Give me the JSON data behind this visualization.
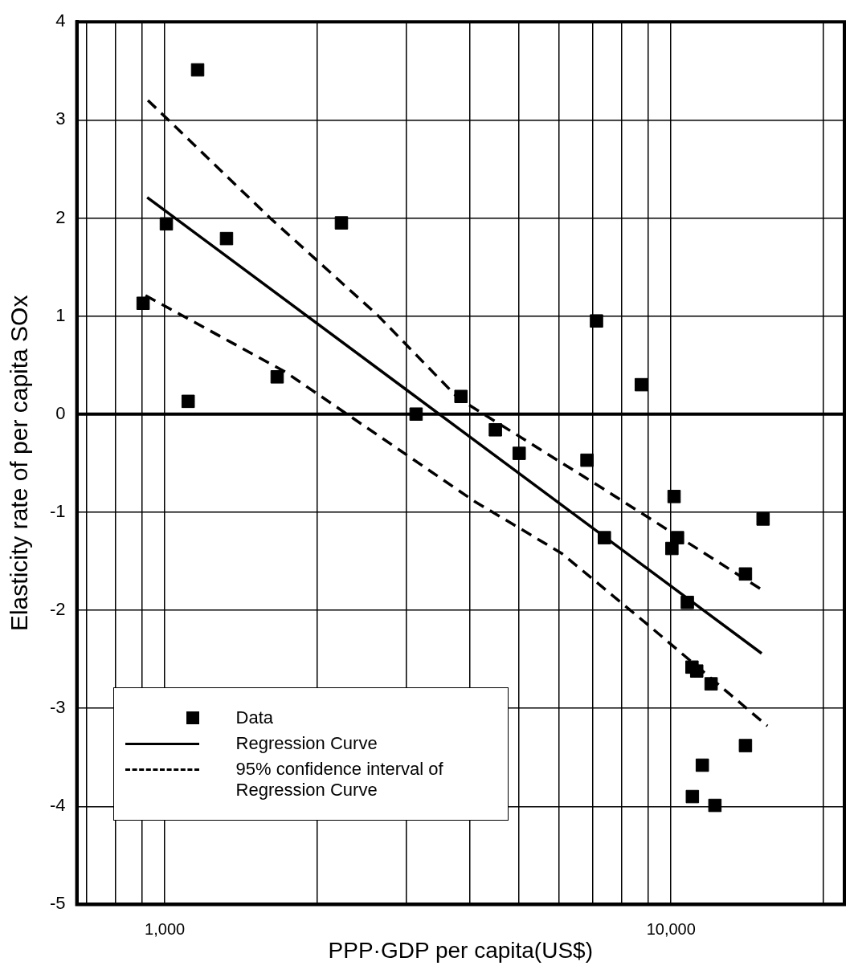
{
  "chart_data": {
    "type": "scatter",
    "xlabel": "PPP·GDP per capita(US$)",
    "ylabel": "Elasticity rate of per capita SOx",
    "log": "x",
    "grid": true,
    "legend": "bottom left",
    "xlim": [
      670,
      22000
    ],
    "xticks": [
      {
        "value": 700,
        "label": null
      },
      {
        "value": 800,
        "label": null
      },
      {
        "value": 900,
        "label": null
      },
      {
        "value": 1000,
        "label": "1,000"
      },
      {
        "value": 2000,
        "label": null
      },
      {
        "value": 3000,
        "label": null
      },
      {
        "value": 4000,
        "label": null
      },
      {
        "value": 5000,
        "label": null
      },
      {
        "value": 6000,
        "label": null
      },
      {
        "value": 7000,
        "label": null
      },
      {
        "value": 8000,
        "label": null
      },
      {
        "value": 9000,
        "label": null
      },
      {
        "value": 10000,
        "label": "10,000"
      },
      {
        "value": 20000,
        "label": null
      }
    ],
    "ylim": [
      -5,
      4
    ],
    "yticks": [
      -5,
      -4,
      -3,
      -2,
      -1,
      0,
      1,
      2,
      3,
      4
    ],
    "ref_lines": [
      {
        "axis": "y",
        "value": 0,
        "label": null
      }
    ],
    "series": [
      {
        "name": "Data",
        "marker": "square",
        "color": "#000000",
        "x": [
          906,
          1007,
          1161,
          1112,
          1324,
          1667,
          2233,
          3136,
          3846,
          4498,
          5012,
          6823,
          7125,
          7385,
          8735,
          10140,
          10040,
          10300,
          10770,
          11000,
          11240,
          12000,
          14030,
          15200,
          14030,
          11530,
          11020,
          12210
        ],
        "values": [
          1.13,
          1.94,
          3.51,
          0.13,
          1.79,
          0.38,
          1.95,
          0.0,
          0.18,
          -0.16,
          -0.4,
          -0.47,
          0.95,
          -1.26,
          0.3,
          -0.84,
          -1.37,
          -1.26,
          -1.92,
          -2.58,
          -2.62,
          -2.75,
          -1.63,
          -1.07,
          -3.38,
          -3.58,
          -3.9,
          -3.99
        ]
      },
      {
        "name": "Regression Curve",
        "type": "line",
        "line_style": "solid",
        "color": "#000000",
        "x": [
          923,
          15100
        ],
        "values": [
          2.21,
          -2.44
        ]
      },
      {
        "name": "95% confidence interval of Regression Curve",
        "type": "line",
        "line_style": "dashed",
        "color": "#000000",
        "x": [
          926,
          1614,
          2631,
          3803,
          7340,
          15100
        ],
        "values": [
          3.2,
          2.0,
          1.01,
          0.16,
          -0.76,
          -1.79
        ]
      },
      {
        "type": "line",
        "line_style": "dashed",
        "color": "#000000",
        "x": [
          916,
          1730,
          4093,
          6082,
          9060,
          15500
        ],
        "values": [
          1.21,
          0.43,
          -0.89,
          -1.42,
          -2.16,
          -3.18
        ]
      }
    ]
  }
}
